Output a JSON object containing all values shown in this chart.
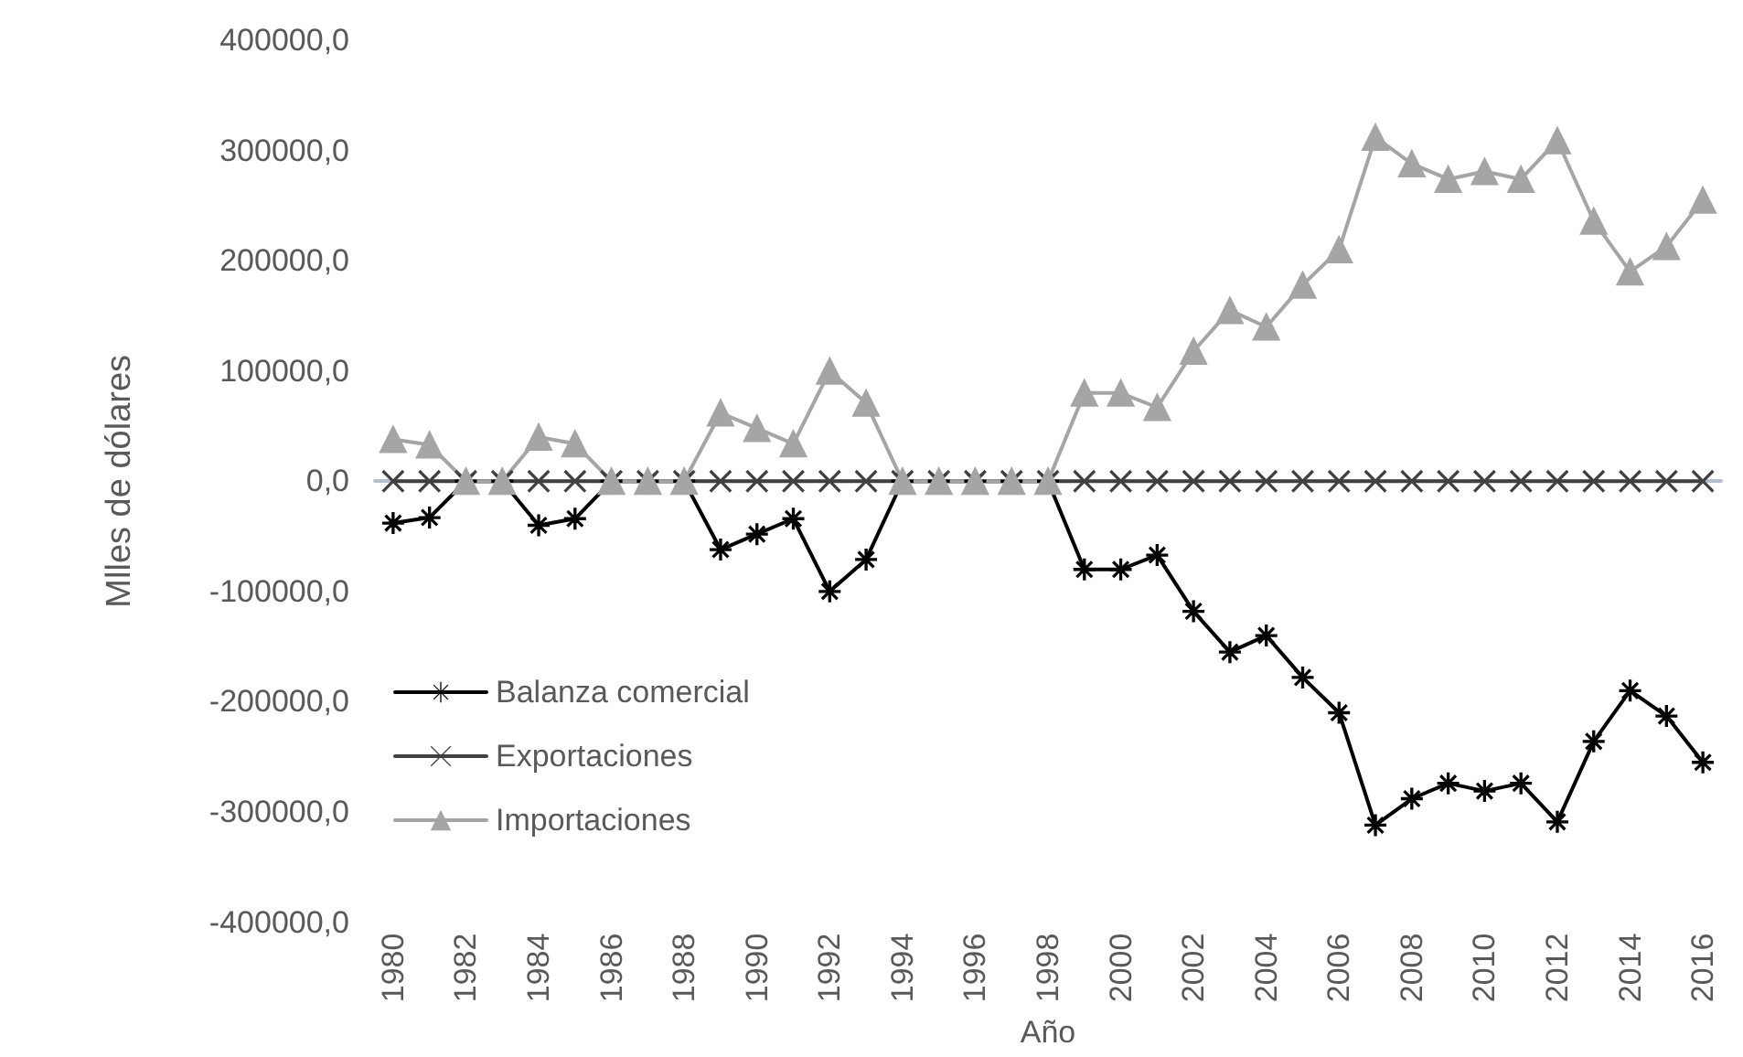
{
  "chart_data": {
    "type": "line",
    "xlabel": "Año",
    "ylabel": "Mlles de dólares",
    "categories": [
      "1980",
      null,
      "1982",
      null,
      "1984",
      null,
      "1986",
      null,
      "1988",
      null,
      "1990",
      null,
      "1992",
      null,
      "1994",
      null,
      "1996",
      null,
      "1998",
      null,
      "2000",
      null,
      "2002",
      null,
      "2004",
      null,
      "2006",
      null,
      "2008",
      null,
      "2010",
      null,
      "2012",
      null,
      "2014",
      null,
      "2016"
    ],
    "series": [
      {
        "name": "Balanza comercial",
        "color": "#000000",
        "marker": "star",
        "values": [
          -38000,
          -33000,
          0,
          0,
          -40000,
          -34000,
          0,
          0,
          0,
          -62000,
          -48000,
          -34000,
          -100000,
          -71000,
          0,
          0,
          0,
          0,
          0,
          -80000,
          -80000,
          -67000,
          -118000,
          -155000,
          -140000,
          -178000,
          -210000,
          -312000,
          -288000,
          -274000,
          -281000,
          -274000,
          -309000,
          -236000,
          -190000,
          -213000,
          -255000
        ]
      },
      {
        "name": "Exportaciones",
        "color": "#404040",
        "marker": "cross",
        "values": [
          0,
          0,
          0,
          0,
          0,
          0,
          0,
          0,
          0,
          0,
          0,
          0,
          0,
          0,
          0,
          0,
          0,
          0,
          0,
          0,
          0,
          0,
          0,
          0,
          0,
          0,
          0,
          0,
          0,
          0,
          0,
          0,
          0,
          0,
          0,
          0,
          0
        ]
      },
      {
        "name": "Importaciones",
        "color": "#a5a5a5",
        "marker": "triangle",
        "values": [
          38000,
          33000,
          0,
          0,
          40000,
          34000,
          0,
          0,
          0,
          62000,
          48000,
          34000,
          100000,
          71000,
          0,
          0,
          0,
          0,
          0,
          80000,
          80000,
          67000,
          118000,
          155000,
          140000,
          178000,
          210000,
          312000,
          288000,
          274000,
          281000,
          274000,
          309000,
          236000,
          190000,
          213000,
          255000
        ]
      }
    ],
    "ylim": [
      -400000,
      400000
    ],
    "yticks": [
      {
        "value": -400000,
        "label": "-400000,0"
      },
      {
        "value": -300000,
        "label": "-300000,0"
      },
      {
        "value": -200000,
        "label": "-200000,0"
      },
      {
        "value": -100000,
        "label": "-100000,0"
      },
      {
        "value": 0,
        "label": "0,0"
      },
      {
        "value": 100000,
        "label": "100000,0"
      },
      {
        "value": 200000,
        "label": "200000,0"
      },
      {
        "value": 300000,
        "label": "300000,0"
      },
      {
        "value": 400000,
        "label": "400000,0"
      }
    ],
    "legend": "left"
  }
}
